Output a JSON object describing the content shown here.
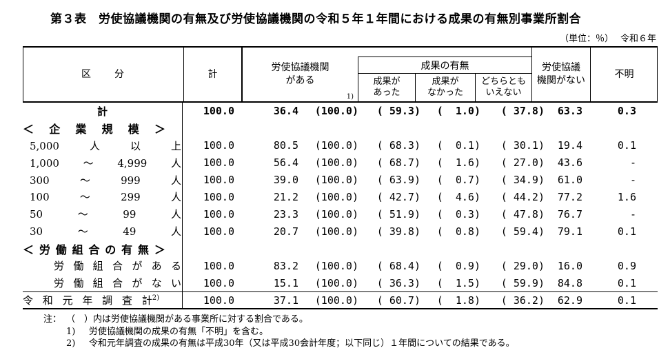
{
  "title": "第３表　労使協議機関の有無及び労使協議機関の令和５年１年間における成果の有無別事業所割合",
  "unit_note": "（単位：％）",
  "year_note": "令和６年",
  "colors": {
    "text": "#000000",
    "background": "#ffffff",
    "rule": "#000000"
  },
  "header": {
    "kubun": "区　　分",
    "total": "計",
    "has_org_line1": "労使協議機関",
    "has_org_line2": "がある",
    "has_org_sup": "1)",
    "outcome_group": "成果の有無",
    "outcome_yes1": "成果が",
    "outcome_yes2": "あった",
    "outcome_no1": "成果が",
    "outcome_no2": "なかった",
    "outcome_neither1": "どちらとも",
    "outcome_neither2": "いえない",
    "no_org_line1": "労使協議",
    "no_org_line2": "機関がない",
    "unknown": "不明"
  },
  "rows": [
    {
      "group": "total",
      "bold": true,
      "tokens": [
        "計"
      ],
      "values": [
        "100.0",
        "36.4",
        "(100.0)",
        "( 59.3)",
        "(  1.0)",
        "( 37.8)",
        "63.3",
        "0.3"
      ]
    },
    {
      "group": "section",
      "tokens": [
        "＜",
        "企",
        "業",
        "規",
        "模",
        "＞"
      ],
      "values": null
    },
    {
      "group": "size",
      "tokens": [
        "5,000",
        "人",
        "以",
        "上"
      ],
      "values": [
        "100.0",
        "80.5",
        "(100.0)",
        "( 68.3)",
        "(  0.1)",
        "( 30.1)",
        "19.4",
        "0.1"
      ]
    },
    {
      "group": "size",
      "tokens": [
        "1,000",
        "～",
        "4,999",
        "人"
      ],
      "values": [
        "100.0",
        "56.4",
        "(100.0)",
        "( 68.7)",
        "(  1.6)",
        "( 27.0)",
        "43.6",
        "-"
      ]
    },
    {
      "group": "size",
      "tokens": [
        "300",
        "～",
        "999",
        "人"
      ],
      "values": [
        "100.0",
        "39.0",
        "(100.0)",
        "( 63.9)",
        "(  0.7)",
        "( 34.9)",
        "61.0",
        "-"
      ]
    },
    {
      "group": "size",
      "tokens": [
        "100",
        "～",
        "299",
        "人"
      ],
      "values": [
        "100.0",
        "21.2",
        "(100.0)",
        "( 42.7)",
        "(  4.6)",
        "( 44.2)",
        "77.2",
        "1.6"
      ]
    },
    {
      "group": "size",
      "tokens": [
        "50",
        "～",
        "99",
        "人"
      ],
      "values": [
        "100.0",
        "23.3",
        "(100.0)",
        "( 51.9)",
        "(  0.3)",
        "( 47.8)",
        "76.7",
        "-"
      ]
    },
    {
      "group": "size",
      "tokens": [
        "30",
        "～",
        "49",
        "人"
      ],
      "values": [
        "100.0",
        "20.7",
        "(100.0)",
        "( 39.8)",
        "(  0.8)",
        "( 59.4)",
        "79.1",
        "0.1"
      ]
    },
    {
      "group": "section",
      "tokens": [
        "＜",
        "労",
        "働",
        "組",
        "合",
        "の",
        "有",
        "無",
        "＞"
      ],
      "values": null
    },
    {
      "group": "union",
      "tokens": [
        "労",
        "働",
        "組",
        "合",
        "が",
        "あ",
        "る"
      ],
      "values": [
        "100.0",
        "83.2",
        "(100.0)",
        "( 68.4)",
        "(  0.9)",
        "( 29.0)",
        "16.0",
        "0.9"
      ]
    },
    {
      "group": "union",
      "tokens": [
        "労",
        "働",
        "組",
        "合",
        "が",
        "な",
        "い"
      ],
      "values": [
        "100.0",
        "15.1",
        "(100.0)",
        "( 36.3)",
        "(  1.5)",
        "( 59.9)",
        "84.8",
        "0.1"
      ]
    },
    {
      "group": "reiwa",
      "separator": true,
      "sup": "2)",
      "tokens": [
        "令",
        "和",
        "元",
        "年",
        "調",
        "査",
        "計"
      ],
      "values": [
        "100.0",
        "37.1",
        "(100.0)",
        "( 60.7)",
        "(  1.8)",
        "( 36.2)",
        "62.9",
        "0.1"
      ]
    }
  ],
  "notes": [
    {
      "marker": "注：",
      "text": "（　）内は労使協議機関がある事業所に対する割合である。",
      "sub": false
    },
    {
      "marker": "1)",
      "text": "労使協議機関の成果の有無「不明」を含む。",
      "sub": true
    },
    {
      "marker": "2)",
      "text": "令和元年調査の成果の有無は平成30年（又は平成30会計年度；以下同じ）１年間についての結果である。",
      "sub": true
    }
  ]
}
